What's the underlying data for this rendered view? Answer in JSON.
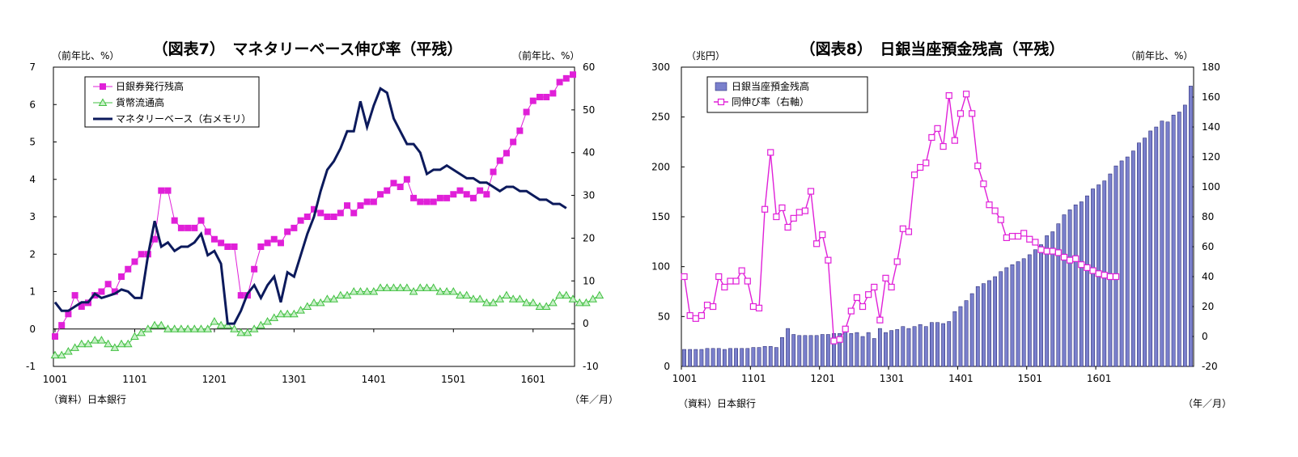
{
  "chart_data": [
    {
      "type": "line",
      "title": "（図表7）　マネタリーベース伸び率（平残）",
      "left_axis_unit": "（前年比、%）",
      "right_axis_unit": "（前年比、%）",
      "source": "（資料）日本銀行",
      "x_unit": "（年／月）",
      "x_tick_labels": [
        "1001",
        "1101",
        "1201",
        "1301",
        "1401",
        "1501",
        "1601"
      ],
      "ylim_left": [
        -1,
        7
      ],
      "yticks_left": [
        "-1",
        "0",
        "1",
        "2",
        "3",
        "4",
        "5",
        "6",
        "7"
      ],
      "ylim_right": [
        -10,
        60
      ],
      "yticks_right": [
        "-10",
        "0",
        "10",
        "20",
        "30",
        "40",
        "50",
        "60"
      ],
      "grid": false,
      "legend_position": "top-left",
      "series": [
        {
          "name": "日銀券発行残高",
          "axis": "left",
          "color": "#e020d8",
          "marker": "square",
          "values": [
            -0.2,
            0.1,
            0.4,
            0.9,
            0.6,
            0.7,
            0.9,
            1.0,
            1.2,
            1.0,
            1.4,
            1.6,
            1.8,
            2.0,
            2.0,
            2.4,
            3.7,
            3.7,
            2.9,
            2.7,
            2.7,
            2.7,
            2.9,
            2.6,
            2.4,
            2.3,
            2.2,
            2.2,
            0.9,
            0.9,
            1.6,
            2.2,
            2.3,
            2.4,
            2.3,
            2.6,
            2.7,
            2.9,
            3.0,
            3.2,
            3.1,
            3.0,
            3.0,
            3.1,
            3.3,
            3.1,
            3.3,
            3.4,
            3.4,
            3.6,
            3.7,
            3.9,
            3.8,
            4.0,
            3.5,
            3.4,
            3.4,
            3.4,
            3.5,
            3.5,
            3.6,
            3.7,
            3.6,
            3.5,
            3.7,
            3.6,
            4.2,
            4.5,
            4.7,
            5.0,
            5.3,
            5.8,
            6.1,
            6.2,
            6.2,
            6.3,
            6.6,
            6.7,
            6.8
          ]
        },
        {
          "name": "貨幣流通高",
          "axis": "left",
          "color": "#40c040",
          "marker": "triangle",
          "values": [
            -0.7,
            -0.7,
            -0.6,
            -0.5,
            -0.4,
            -0.4,
            -0.3,
            -0.3,
            -0.4,
            -0.5,
            -0.4,
            -0.4,
            -0.2,
            -0.1,
            0.0,
            0.1,
            0.1,
            0.0,
            0.0,
            0.0,
            0.0,
            0.0,
            0.0,
            0.0,
            0.2,
            0.1,
            0.1,
            0.0,
            -0.1,
            -0.1,
            0.0,
            0.1,
            0.2,
            0.3,
            0.4,
            0.4,
            0.4,
            0.5,
            0.6,
            0.7,
            0.7,
            0.8,
            0.8,
            0.9,
            0.9,
            1.0,
            1.0,
            1.0,
            1.0,
            1.1,
            1.1,
            1.1,
            1.1,
            1.1,
            1.0,
            1.1,
            1.1,
            1.1,
            1.0,
            1.0,
            1.0,
            0.9,
            0.9,
            0.8,
            0.8,
            0.7,
            0.7,
            0.8,
            0.9,
            0.8,
            0.8,
            0.7,
            0.7,
            0.6,
            0.6,
            0.7,
            0.9,
            0.9,
            0.8,
            0.7,
            0.7,
            0.8,
            0.9
          ]
        },
        {
          "name": "マネタリーベース（右メモリ）",
          "axis": "right",
          "color": "#0c1a5c",
          "marker": "none",
          "values": [
            5,
            3,
            3,
            4,
            5,
            5,
            7,
            6,
            6.5,
            7,
            8,
            7.5,
            6,
            6,
            16,
            24,
            18,
            19,
            17,
            18,
            18,
            19,
            21,
            16,
            17,
            14,
            0,
            0,
            3,
            7,
            9,
            6,
            9,
            11,
            5,
            12,
            11,
            16,
            21,
            25,
            31,
            36,
            38,
            41,
            45,
            45,
            52,
            46,
            51,
            55,
            54,
            48,
            45,
            42,
            42,
            40,
            35,
            36,
            36,
            37,
            36,
            35,
            34,
            34,
            33,
            33,
            32,
            31,
            32,
            32,
            31,
            31,
            30,
            29,
            29,
            28,
            28,
            27
          ]
        }
      ]
    },
    {
      "type": "bar",
      "title": "（図表8）　日銀当座預金残高（平残）",
      "left_axis_unit": "（兆円）",
      "right_axis_unit": "（前年比、%）",
      "source": "（資料）日本銀行",
      "x_unit": "（年／月）",
      "x_tick_labels": [
        "1001",
        "1101",
        "1201",
        "1301",
        "1401",
        "1501",
        "1601"
      ],
      "ylim_left": [
        0,
        300
      ],
      "yticks_left": [
        "0",
        "50",
        "100",
        "150",
        "200",
        "250",
        "300"
      ],
      "ylim_right": [
        -20,
        180
      ],
      "yticks_right": [
        "-20",
        "0",
        "20",
        "40",
        "60",
        "80",
        "100",
        "120",
        "140",
        "160",
        "180"
      ],
      "grid": false,
      "legend_position": "top-left",
      "series": [
        {
          "name": "日銀当座預金残高",
          "axis": "left",
          "type": "bar",
          "color": "#7a80cc",
          "values": [
            17,
            17,
            17,
            17,
            18,
            18,
            18,
            17,
            18,
            18,
            18,
            18,
            19,
            19,
            20,
            20,
            19,
            29,
            38,
            32,
            31,
            31,
            31,
            31,
            32,
            32,
            33,
            33,
            36,
            33,
            34,
            30,
            34,
            28,
            38,
            34,
            36,
            37,
            40,
            38,
            40,
            42,
            40,
            44,
            44,
            43,
            45,
            55,
            60,
            66,
            73,
            80,
            83,
            86,
            90,
            95,
            99,
            102,
            105,
            108,
            112,
            117,
            122,
            131,
            135,
            143,
            152,
            157,
            162,
            165,
            171,
            178,
            182,
            186,
            193,
            201,
            206,
            210,
            216,
            224,
            229,
            236,
            240,
            246,
            245,
            252,
            255,
            262,
            281
          ]
        },
        {
          "name": "同伸び率（右軸）",
          "axis": "right",
          "type": "line",
          "color": "#e020d8",
          "marker": "square",
          "values": [
            40,
            14,
            12,
            14,
            21,
            20,
            40,
            33,
            37,
            37,
            44,
            37,
            20,
            19,
            85,
            123,
            80,
            86,
            73,
            79,
            83,
            84,
            97,
            62,
            68,
            51,
            -3,
            -2,
            5,
            17,
            26,
            20,
            28,
            33,
            11,
            39,
            33,
            50,
            72,
            70,
            108,
            113,
            116,
            133,
            139,
            127,
            161,
            131,
            149,
            162,
            149,
            114,
            102,
            88,
            84,
            78,
            66,
            67,
            67,
            69,
            65,
            63,
            58,
            57,
            57,
            56,
            53,
            51,
            52,
            48,
            46,
            44,
            42,
            41,
            40,
            40
          ]
        }
      ]
    }
  ]
}
